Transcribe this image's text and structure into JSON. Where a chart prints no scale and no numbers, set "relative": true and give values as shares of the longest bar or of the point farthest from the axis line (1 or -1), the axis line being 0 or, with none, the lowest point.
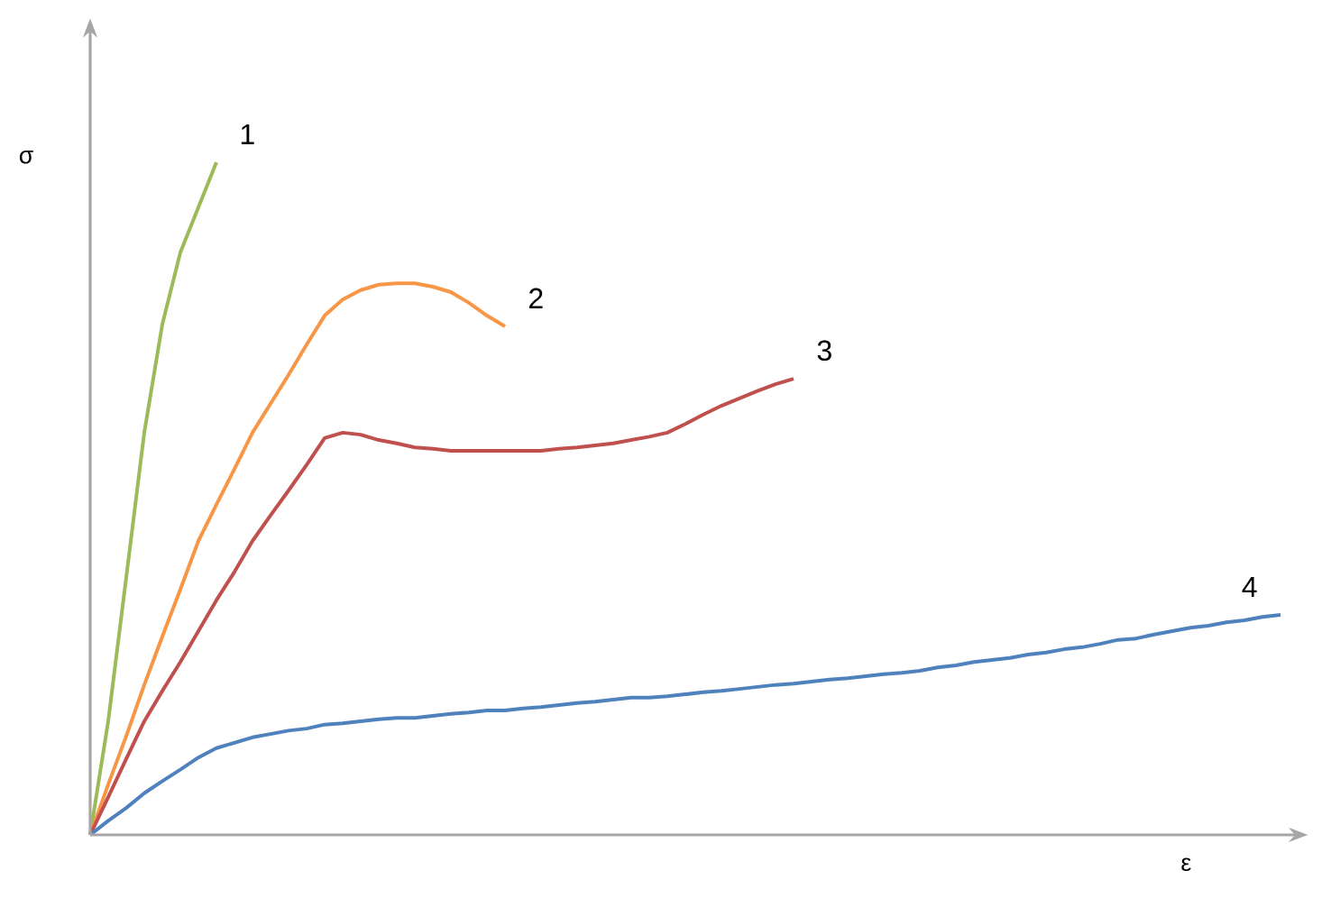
{
  "chart_data": {
    "type": "line",
    "relative": true,
    "xlabel": "ε",
    "ylabel": "σ",
    "categories": [
      null,
      null,
      null,
      null,
      null,
      null,
      null,
      null,
      null,
      null,
      null,
      null,
      null,
      null,
      null,
      null,
      null,
      null,
      null,
      null,
      null,
      null,
      null,
      null,
      null,
      null,
      null,
      null,
      null,
      null,
      null,
      null,
      null,
      null,
      null,
      null,
      null,
      null,
      null,
      null,
      null,
      null,
      null,
      null,
      null,
      null,
      null,
      null,
      null,
      null,
      null,
      null,
      null,
      null,
      null,
      null,
      null,
      null,
      null,
      null,
      null,
      null,
      null,
      null,
      null,
      null,
      null
    ],
    "series": [
      {
        "name": "1",
        "color": "#9bbb59",
        "values": [
          0,
          0.169,
          0.383,
          0.598,
          0.759,
          0.866,
          0.933,
          1,
          null,
          null,
          null,
          null,
          null,
          null,
          null,
          null,
          null,
          null,
          null,
          null,
          null,
          null,
          null,
          null,
          null,
          null,
          null,
          null,
          null,
          null,
          null,
          null,
          null,
          null,
          null,
          null,
          null,
          null,
          null,
          null,
          null,
          null,
          null,
          null,
          null,
          null,
          null,
          null,
          null,
          null,
          null,
          null,
          null,
          null,
          null,
          null,
          null,
          null,
          null,
          null,
          null,
          null,
          null,
          null,
          null,
          null,
          null
        ]
      },
      {
        "name": "2",
        "color": "#f79646",
        "values": [
          0,
          0.075,
          0.147,
          0.223,
          0.295,
          0.365,
          0.437,
          0.491,
          0.544,
          0.598,
          0.641,
          0.684,
          0.729,
          0.772,
          0.796,
          0.81,
          0.818,
          0.82,
          0.82,
          0.815,
          0.807,
          0.791,
          0.772,
          0.756,
          null,
          null,
          null,
          null,
          null,
          null,
          null,
          null,
          null,
          null,
          null,
          null,
          null,
          null,
          null,
          null,
          null,
          null,
          null,
          null,
          null,
          null,
          null,
          null,
          null,
          null,
          null,
          null,
          null,
          null,
          null,
          null,
          null,
          null,
          null,
          null,
          null,
          null,
          null,
          null,
          null,
          null,
          null
        ]
      },
      {
        "name": "3",
        "color": "#c0504d",
        "values": [
          0,
          0.056,
          0.113,
          0.169,
          0.214,
          0.257,
          0.303,
          0.349,
          0.391,
          0.437,
          0.475,
          0.512,
          0.55,
          0.59,
          0.598,
          0.595,
          0.587,
          0.582,
          0.576,
          0.574,
          0.571,
          0.571,
          0.571,
          0.571,
          0.571,
          0.571,
          0.574,
          0.576,
          0.579,
          0.582,
          0.587,
          0.592,
          0.598,
          0.611,
          0.625,
          0.638,
          0.649,
          0.66,
          0.67,
          0.678,
          null,
          null,
          null,
          null,
          null,
          null,
          null,
          null,
          null,
          null,
          null,
          null,
          null,
          null,
          null,
          null,
          null,
          null,
          null,
          null,
          null,
          null,
          null,
          null,
          null,
          null,
          null
        ]
      },
      {
        "name": "4",
        "color": "#4f81bd",
        "values": [
          0,
          0.021,
          0.04,
          0.062,
          0.08,
          0.097,
          0.115,
          0.129,
          0.137,
          0.145,
          0.15,
          0.155,
          0.158,
          0.164,
          0.166,
          0.169,
          0.172,
          0.174,
          0.174,
          0.177,
          0.18,
          0.182,
          0.185,
          0.185,
          0.188,
          0.19,
          0.193,
          0.196,
          0.198,
          0.201,
          0.204,
          0.204,
          0.206,
          0.209,
          0.212,
          0.214,
          0.217,
          0.22,
          0.223,
          0.225,
          0.228,
          0.231,
          0.233,
          0.236,
          0.239,
          0.241,
          0.244,
          0.249,
          0.252,
          0.257,
          0.26,
          0.263,
          0.268,
          0.271,
          0.276,
          0.279,
          0.284,
          0.29,
          0.292,
          0.298,
          0.303,
          0.308,
          0.311,
          0.316,
          0.319,
          0.324,
          0.327
        ]
      }
    ]
  }
}
